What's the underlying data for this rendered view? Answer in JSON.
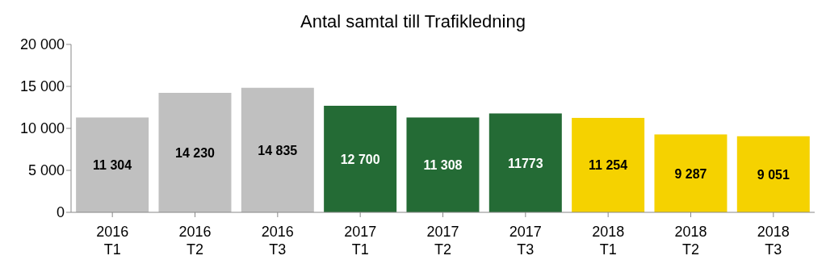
{
  "chart_data": {
    "type": "bar",
    "title": "Antal samtal till Trafikledning",
    "categories": [
      "2016\nT1",
      "2016\nT2",
      "2016\nT3",
      "2017\nT1",
      "2017\nT2",
      "2017\nT3",
      "2018\nT1",
      "2018\nT2",
      "2018\nT3"
    ],
    "values": [
      11304,
      14230,
      14835,
      12700,
      11308,
      11773,
      11254,
      9287,
      9051
    ],
    "value_labels": [
      "11 304",
      "14 230",
      "14 835",
      "12 700",
      "11 308",
      "11773",
      "11 254",
      "9 287",
      "9 051"
    ],
    "colors": [
      "#c0c0c0",
      "#c0c0c0",
      "#c0c0c0",
      "#246b35",
      "#246b35",
      "#246b35",
      "#f5d200",
      "#f5d200",
      "#f5d200"
    ],
    "ylim": [
      0,
      20000
    ],
    "yticks": [
      {
        "value": 0,
        "label": "0"
      },
      {
        "value": 5000,
        "label": "5 000"
      },
      {
        "value": 10000,
        "label": "10 000"
      },
      {
        "value": 15000,
        "label": "15 000"
      },
      {
        "value": 20000,
        "label": "20 000"
      }
    ],
    "grid": false,
    "legend": false
  }
}
